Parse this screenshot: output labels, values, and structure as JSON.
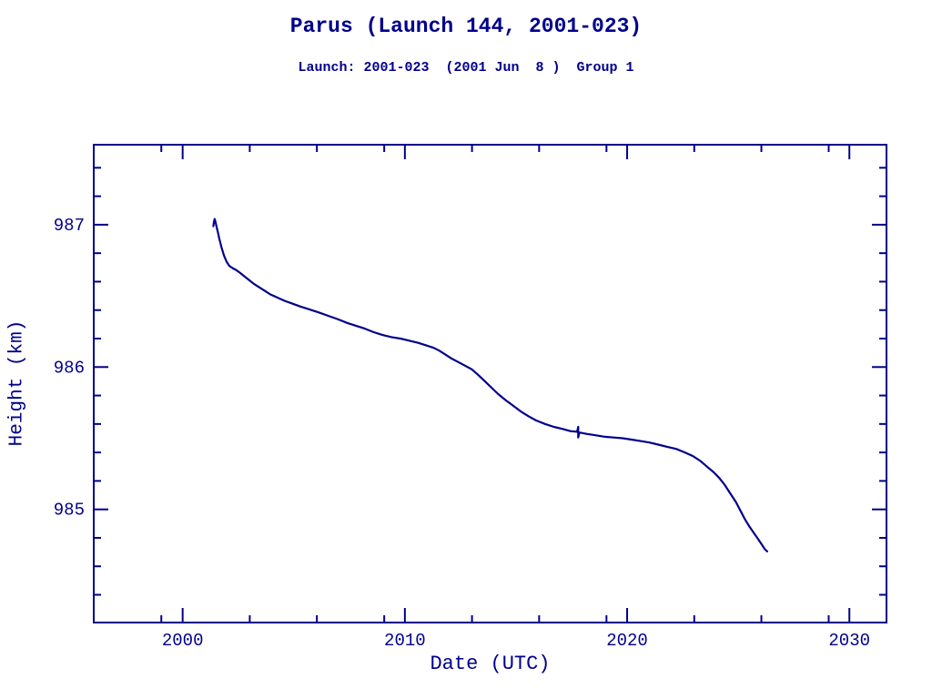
{
  "colors": {
    "ink": "#00008b",
    "background": "#ffffff"
  },
  "chart_data": {
    "type": "line",
    "title": "Parus (Launch 144, 2001-023)",
    "subtitle": "Launch: 2001-023  (2001 Jun  8 )  Group 1",
    "xlabel": "Date (UTC)",
    "ylabel": "Height (km)",
    "xlim": [
      1996.0,
      2031.67
    ],
    "ylim": [
      984.205,
      987.562
    ],
    "grid": false,
    "legend_position": "none",
    "x_major_ticks": [
      2000,
      2010,
      2020,
      2030
    ],
    "x_tick_labels": [
      "2000",
      "2010",
      "2020",
      "2030"
    ],
    "x_minor_ticks": [
      1999.04,
      2003.02,
      2006.04,
      2009.07,
      2013.02,
      2016.04,
      2019.07,
      2023.02,
      2026.04,
      2029.07
    ],
    "y_major_ticks": [
      985,
      986,
      987
    ],
    "y_tick_labels": [
      "985",
      "986",
      "987"
    ],
    "y_minor_ticks": [
      984.4,
      984.6,
      984.8,
      985.2,
      985.4,
      985.6,
      985.8,
      986.2,
      986.4,
      986.6,
      986.8,
      987.2,
      987.4
    ],
    "series": [
      {
        "name": "height",
        "color": "#00008b",
        "points": [
          [
            2001.38,
            986.99
          ],
          [
            2001.41,
            987.02
          ],
          [
            2001.44,
            987.04
          ],
          [
            2001.48,
            987.02
          ],
          [
            2001.52,
            986.99
          ],
          [
            2001.58,
            986.95
          ],
          [
            2001.65,
            986.9
          ],
          [
            2001.75,
            986.84
          ],
          [
            2001.87,
            986.78
          ],
          [
            2001.98,
            986.74
          ],
          [
            2002.1,
            986.71
          ],
          [
            2002.25,
            986.695
          ],
          [
            2002.42,
            986.68
          ],
          [
            2002.6,
            986.66
          ],
          [
            2002.8,
            986.635
          ],
          [
            2003.0,
            986.61
          ],
          [
            2003.2,
            986.585
          ],
          [
            2003.45,
            986.56
          ],
          [
            2003.7,
            986.535
          ],
          [
            2003.95,
            986.51
          ],
          [
            2004.1,
            986.5
          ],
          [
            2004.3,
            986.485
          ],
          [
            2004.6,
            986.465
          ],
          [
            2004.95,
            986.445
          ],
          [
            2005.3,
            986.425
          ],
          [
            2005.7,
            986.405
          ],
          [
            2006.1,
            986.385
          ],
          [
            2006.55,
            986.36
          ],
          [
            2007.0,
            986.335
          ],
          [
            2007.4,
            986.31
          ],
          [
            2007.8,
            986.29
          ],
          [
            2008.2,
            986.27
          ],
          [
            2008.6,
            986.245
          ],
          [
            2009.0,
            986.225
          ],
          [
            2009.4,
            986.21
          ],
          [
            2009.8,
            986.2
          ],
          [
            2010.2,
            986.185
          ],
          [
            2010.6,
            986.17
          ],
          [
            2011.0,
            986.15
          ],
          [
            2011.3,
            986.135
          ],
          [
            2011.55,
            986.115
          ],
          [
            2011.8,
            986.09
          ],
          [
            2012.1,
            986.06
          ],
          [
            2012.4,
            986.035
          ],
          [
            2012.7,
            986.01
          ],
          [
            2013.0,
            985.985
          ],
          [
            2013.3,
            985.945
          ],
          [
            2013.6,
            985.9
          ],
          [
            2013.9,
            985.855
          ],
          [
            2014.2,
            985.81
          ],
          [
            2014.55,
            985.765
          ],
          [
            2014.9,
            985.725
          ],
          [
            2015.2,
            985.69
          ],
          [
            2015.55,
            985.655
          ],
          [
            2015.9,
            985.625
          ],
          [
            2016.3,
            985.6
          ],
          [
            2016.7,
            985.58
          ],
          [
            2017.1,
            985.565
          ],
          [
            2017.45,
            985.55
          ],
          [
            2017.75,
            985.545
          ],
          [
            2017.8,
            985.58
          ],
          [
            2017.8,
            985.505
          ],
          [
            2017.85,
            985.54
          ],
          [
            2018.2,
            985.53
          ],
          [
            2018.6,
            985.52
          ],
          [
            2019.0,
            985.51
          ],
          [
            2019.4,
            985.505
          ],
          [
            2019.8,
            985.5
          ],
          [
            2020.2,
            985.49
          ],
          [
            2020.6,
            985.48
          ],
          [
            2021.0,
            985.47
          ],
          [
            2021.4,
            985.455
          ],
          [
            2021.8,
            985.44
          ],
          [
            2022.2,
            985.425
          ],
          [
            2022.6,
            985.4
          ],
          [
            2022.95,
            985.375
          ],
          [
            2023.3,
            985.34
          ],
          [
            2023.6,
            985.3
          ],
          [
            2023.9,
            985.26
          ],
          [
            2024.15,
            985.22
          ],
          [
            2024.4,
            985.17
          ],
          [
            2024.65,
            985.11
          ],
          [
            2024.9,
            985.05
          ],
          [
            2025.1,
            984.99
          ],
          [
            2025.3,
            984.93
          ],
          [
            2025.5,
            984.88
          ],
          [
            2025.7,
            984.835
          ],
          [
            2025.9,
            984.79
          ],
          [
            2026.05,
            984.755
          ],
          [
            2026.2,
            984.72
          ],
          [
            2026.3,
            984.705
          ]
        ]
      }
    ]
  }
}
